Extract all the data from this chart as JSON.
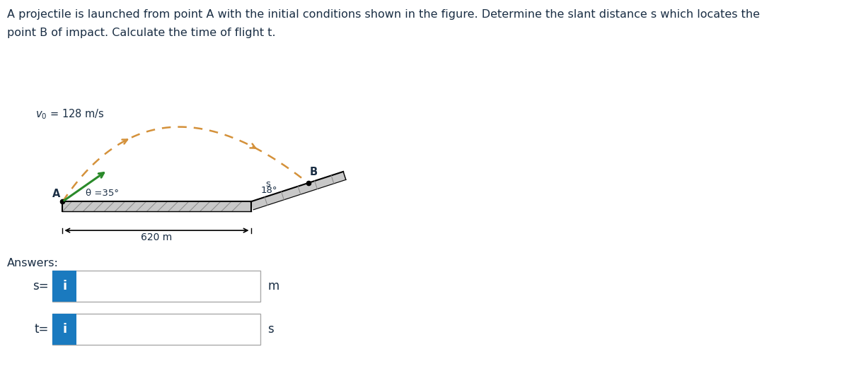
{
  "title_line1": "A projectile is launched from point A with the initial conditions shown in the figure. Determine the slant distance s which locates the",
  "title_line2": "point B of impact. Calculate the time of flight t.",
  "title_fontsize": 11.5,
  "v0_label": "$v_0$ = 128 m/s",
  "theta_label": "θ =35°",
  "distance_label": "620 m",
  "angle18_label": "18°",
  "s_label": "s",
  "A_label": "A",
  "B_label": "B",
  "answers_label": "Answers:",
  "s_ans_label": "s=",
  "t_ans_label": "t=",
  "m_label": "m",
  "sec_label": "s",
  "theta_deg": 35,
  "slope_deg": 18,
  "ground_color": "#c8c8c8",
  "slope_color": "#c8c8c8",
  "trajectory_color": "#d4913a",
  "velocity_color": "#2a8a2a",
  "text_color": "#1a2e44",
  "input_box_color": "#1a7abf",
  "input_box_border": "#c0c0c0",
  "bg_color": "#ffffff"
}
